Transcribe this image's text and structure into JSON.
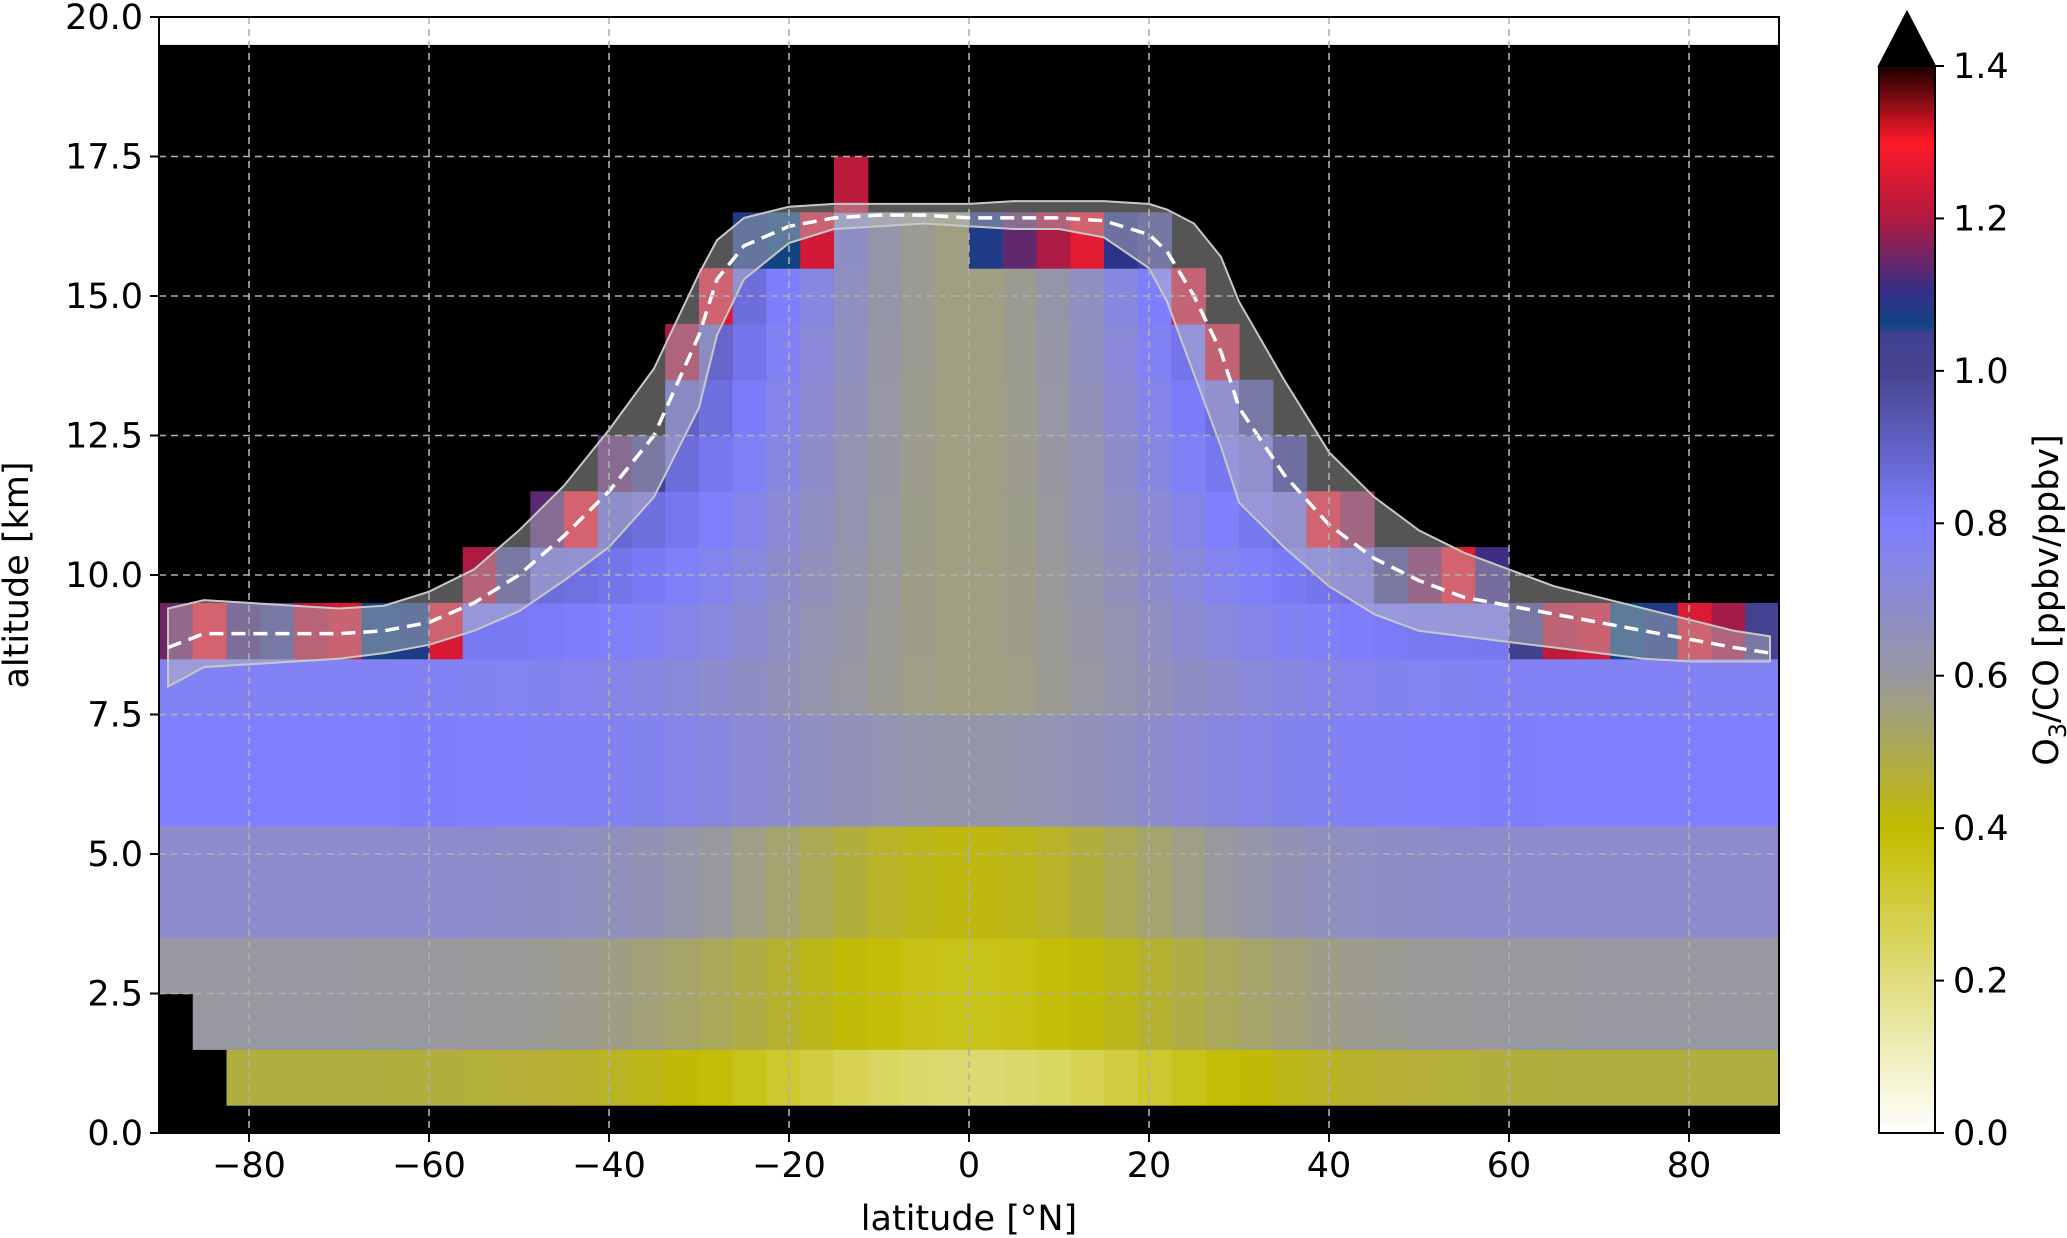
{
  "chart_data": {
    "type": "heatmap",
    "title": "",
    "xlabel": "latitude [°N]",
    "ylabel": "altitude [km]",
    "xlim": [
      -90,
      90
    ],
    "ylim": [
      0,
      20
    ],
    "x_ticks": [
      -80,
      -60,
      -40,
      -20,
      0,
      20,
      40,
      60,
      80
    ],
    "x_tick_labels": [
      "−80",
      "−60",
      "−40",
      "−20",
      "0",
      "20",
      "40",
      "60",
      "80"
    ],
    "y_ticks": [
      0,
      2.5,
      5,
      7.5,
      10,
      12.5,
      15,
      17.5,
      20
    ],
    "y_tick_labels": [
      "0.0",
      "2.5",
      "5.0",
      "7.5",
      "10.0",
      "12.5",
      "15.0",
      "17.5",
      "20.0"
    ],
    "grid": true,
    "background_above_tropopause": "#000000",
    "colorbar": {
      "label_main": "O",
      "label_sub": "3",
      "label_rest": "/CO [ppbv/ppbv]",
      "range": [
        0,
        1.4
      ],
      "extend": "max",
      "ticks": [
        0,
        0.2,
        0.4,
        0.6,
        0.8,
        1.0,
        1.2,
        1.4
      ],
      "tick_labels": [
        "0.0",
        "0.2",
        "0.4",
        "0.6",
        "0.8",
        "1.0",
        "1.2",
        "1.4"
      ],
      "stops": [
        {
          "v": 0.0,
          "c": "#ffffff"
        },
        {
          "v": 0.4,
          "c": "#c2bc00"
        },
        {
          "v": 0.6,
          "c": "#9898a0"
        },
        {
          "v": 0.8,
          "c": "#7f7fff"
        },
        {
          "v": 1.0,
          "c": "#45458f"
        },
        {
          "v": 1.05,
          "c": "#404090"
        },
        {
          "v": 1.06,
          "c": "#0f4680"
        },
        {
          "v": 1.1,
          "c": "#30308a"
        },
        {
          "v": 1.2,
          "c": "#b01a40"
        },
        {
          "v": 1.3,
          "c": "#ff1a2a"
        },
        {
          "v": 1.4,
          "c": "#200000"
        }
      ]
    },
    "tropopause": {
      "lat": [
        -89,
        -85,
        -80,
        -75,
        -70,
        -65,
        -60,
        -55,
        -50,
        -45,
        -40,
        -35,
        -30,
        -28,
        -25,
        -20,
        -15,
        -10,
        -5,
        0,
        5,
        10,
        15,
        20,
        22,
        25,
        28,
        30,
        35,
        40,
        45,
        50,
        55,
        60,
        65,
        70,
        75,
        80,
        85,
        89
      ],
      "mean": [
        8.7,
        8.95,
        8.95,
        8.95,
        8.95,
        9.0,
        9.15,
        9.5,
        10.0,
        10.7,
        11.5,
        12.5,
        14.3,
        15.3,
        15.9,
        16.25,
        16.4,
        16.45,
        16.45,
        16.4,
        16.4,
        16.4,
        16.35,
        16.1,
        15.8,
        15.0,
        14.0,
        13.0,
        11.8,
        10.9,
        10.3,
        9.9,
        9.6,
        9.45,
        9.3,
        9.15,
        9.0,
        8.85,
        8.7,
        8.6
      ],
      "upper": [
        9.4,
        9.55,
        9.5,
        9.45,
        9.4,
        9.45,
        9.7,
        10.1,
        10.8,
        11.6,
        12.6,
        13.7,
        15.4,
        16.0,
        16.4,
        16.6,
        16.65,
        16.65,
        16.65,
        16.65,
        16.7,
        16.7,
        16.7,
        16.65,
        16.55,
        16.3,
        15.7,
        14.9,
        13.5,
        12.2,
        11.4,
        10.8,
        10.4,
        10.1,
        9.8,
        9.6,
        9.4,
        9.2,
        9.0,
        8.9
      ],
      "lower": [
        8.0,
        8.35,
        8.4,
        8.45,
        8.5,
        8.6,
        8.75,
        9.0,
        9.35,
        9.9,
        10.5,
        11.4,
        13.0,
        14.3,
        15.3,
        15.95,
        16.2,
        16.25,
        16.3,
        16.25,
        16.2,
        16.2,
        16.05,
        15.5,
        14.9,
        13.6,
        12.3,
        11.3,
        10.5,
        9.8,
        9.3,
        9.0,
        8.9,
        8.8,
        8.7,
        8.6,
        8.5,
        8.45,
        8.45,
        8.45
      ]
    }
  }
}
